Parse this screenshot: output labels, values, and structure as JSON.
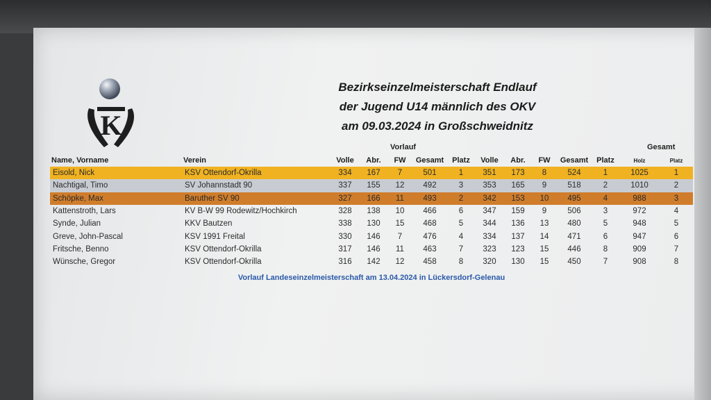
{
  "colors": {
    "gold": "#f0b221",
    "silver": "#c8ccd2",
    "bronze": "#d07d2b",
    "note": "#2a5aa8"
  },
  "logo": {
    "icon": "kegel-club-logo",
    "letter": "K"
  },
  "title": {
    "line1": "Bezirkseinzelmeisterschaft Endlauf",
    "line2": "der Jugend U14 männlich des OKV",
    "line3": "am 09.03.2024 in Großschweidnitz"
  },
  "group_headers": {
    "vorlauf": "Vorlauf",
    "gesamt": "Gesamt"
  },
  "columns": {
    "name": "Name, Vorname",
    "verein": "Verein",
    "volle1": "Volle",
    "abr1": "Abr.",
    "fw1": "FW",
    "gesamt1": "Gesamt",
    "platz1": "Platz",
    "volle2": "Volle",
    "abr2": "Abr.",
    "fw2": "FW",
    "gesamt2": "Gesamt",
    "platz2": "Platz",
    "holz": "Holz",
    "platz": "Platz"
  },
  "rows": [
    {
      "name": "Eisold, Nick",
      "verein": "KSV Ottendorf-Okrilla",
      "volle1": "334",
      "abr1": "167",
      "fw1": "7",
      "gesamt1": "501",
      "platz1": "1",
      "volle2": "351",
      "abr2": "173",
      "fw2": "8",
      "gesamt2": "524",
      "platz2": "1",
      "holz": "1025",
      "platz": "1"
    },
    {
      "name": "Nachtigal, Timo",
      "verein": "SV Johannstadt 90",
      "volle1": "337",
      "abr1": "155",
      "fw1": "12",
      "gesamt1": "492",
      "platz1": "3",
      "volle2": "353",
      "abr2": "165",
      "fw2": "9",
      "gesamt2": "518",
      "platz2": "2",
      "holz": "1010",
      "platz": "2"
    },
    {
      "name": "Schöpke, Max",
      "verein": "Baruther SV 90",
      "volle1": "327",
      "abr1": "166",
      "fw1": "11",
      "gesamt1": "493",
      "platz1": "2",
      "volle2": "342",
      "abr2": "153",
      "fw2": "10",
      "gesamt2": "495",
      "platz2": "4",
      "holz": "988",
      "platz": "3"
    },
    {
      "name": "Kattenstroth, Lars",
      "verein": "KV B-W 99 Rodewitz/Hochkirch",
      "volle1": "328",
      "abr1": "138",
      "fw1": "10",
      "gesamt1": "466",
      "platz1": "6",
      "volle2": "347",
      "abr2": "159",
      "fw2": "9",
      "gesamt2": "506",
      "platz2": "3",
      "holz": "972",
      "platz": "4"
    },
    {
      "name": "Synde, Julian",
      "verein": "KKV Bautzen",
      "volle1": "338",
      "abr1": "130",
      "fw1": "15",
      "gesamt1": "468",
      "platz1": "5",
      "volle2": "344",
      "abr2": "136",
      "fw2": "13",
      "gesamt2": "480",
      "platz2": "5",
      "holz": "948",
      "platz": "5"
    },
    {
      "name": "Greve, John-Pascal",
      "verein": "KSV 1991 Freital",
      "volle1": "330",
      "abr1": "146",
      "fw1": "7",
      "gesamt1": "476",
      "platz1": "4",
      "volle2": "334",
      "abr2": "137",
      "fw2": "14",
      "gesamt2": "471",
      "platz2": "6",
      "holz": "947",
      "platz": "6"
    },
    {
      "name": "Fritsche, Benno",
      "verein": "KSV Ottendorf-Okrilla",
      "volle1": "317",
      "abr1": "146",
      "fw1": "11",
      "gesamt1": "463",
      "platz1": "7",
      "volle2": "323",
      "abr2": "123",
      "fw2": "15",
      "gesamt2": "446",
      "platz2": "8",
      "holz": "909",
      "platz": "7"
    },
    {
      "name": "Wünsche, Gregor",
      "verein": "KSV Ottendorf-Okrilla",
      "volle1": "316",
      "abr1": "142",
      "fw1": "12",
      "gesamt1": "458",
      "platz1": "8",
      "volle2": "320",
      "abr2": "130",
      "fw2": "15",
      "gesamt2": "450",
      "platz2": "7",
      "holz": "908",
      "platz": "8"
    }
  ],
  "note": "Vorlauf Landeseinzelmeisterschaft am 13.04.2024 in Lückersdorf-Gelenau"
}
